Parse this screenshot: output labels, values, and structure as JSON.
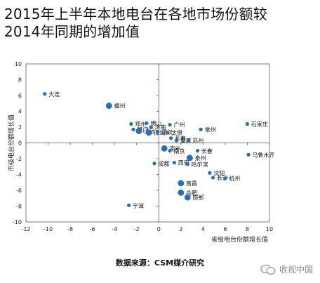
{
  "title_lines": [
    "2015年上半年本地电台在各地市场份额较",
    "2014年同期的增加值"
  ],
  "source_text": "数据来源：CSM媒介研究",
  "watermark_text": "收视中国",
  "chart_data": {
    "type": "scatter",
    "xlabel": "省级电台份额增长值",
    "ylabel": "市级电台份额增长值",
    "xlim": [
      -12,
      10
    ],
    "ylim": [
      -10,
      10
    ],
    "x_ticks": [
      -12,
      -10,
      -8,
      -6,
      -4,
      -2,
      0,
      2,
      4,
      6,
      8,
      10
    ],
    "y_ticks": [
      10,
      8,
      6,
      4,
      2,
      0,
      -2,
      -4,
      -6,
      -8,
      -10
    ],
    "grid": false,
    "legend": false,
    "colors": {
      "point": "#2e6fb4",
      "axis": "#555555"
    },
    "points": [
      {
        "label": "大连",
        "x": -10.3,
        "y": 6.2,
        "size": 2
      },
      {
        "label": "福州",
        "x": -4.5,
        "y": 4.7,
        "size": 3
      },
      {
        "label": "郑州",
        "x": -2.5,
        "y": 2.4,
        "size": 2
      },
      {
        "label": "厦门",
        "x": -2.3,
        "y": 1.7,
        "size": 2
      },
      {
        "label": "佛山",
        "x": -1.1,
        "y": 2.5,
        "size": 2
      },
      {
        "label": "济南",
        "x": -0.7,
        "y": 2.0,
        "size": 2
      },
      {
        "label": "广州",
        "x": 1.0,
        "y": 2.3,
        "size": 2
      },
      {
        "label": "清远",
        "x": -1.8,
        "y": 1.5,
        "size": 3
      },
      {
        "label": "深圳",
        "x": -0.9,
        "y": 1.3,
        "size": 3
      },
      {
        "label": "武汉",
        "x": -0.1,
        "y": 1.4,
        "size": 2
      },
      {
        "label": "太原",
        "x": 0.8,
        "y": 1.3,
        "size": 2
      },
      {
        "label": "长春",
        "x": 1.1,
        "y": 0.6,
        "size": 2
      },
      {
        "label": "重庆",
        "x": 1.6,
        "y": 0.3,
        "size": 2
      },
      {
        "label": "苏州",
        "x": 2.7,
        "y": 0.3,
        "size": 2
      },
      {
        "label": "常州",
        "x": 3.8,
        "y": 1.7,
        "size": 2
      },
      {
        "label": "石家庄",
        "x": 8.0,
        "y": 2.4,
        "size": 2
      },
      {
        "label": "长春",
        "x": 3.5,
        "y": -1.0,
        "size": 2
      },
      {
        "label": "南宁",
        "x": 0.5,
        "y": -0.7,
        "size": 3
      },
      {
        "label": "南京",
        "x": 1.0,
        "y": -1.0,
        "size": 2
      },
      {
        "label": "泉州",
        "x": 2.8,
        "y": -1.9,
        "size": 3
      },
      {
        "label": "西安",
        "x": 1.4,
        "y": -2.5,
        "size": 2
      },
      {
        "label": "哈尔滨",
        "x": 2.6,
        "y": -2.7,
        "size": 2
      },
      {
        "label": "乌鲁木齐",
        "x": 8.1,
        "y": -1.5,
        "size": 2
      },
      {
        "label": "成都",
        "x": -0.4,
        "y": -2.6,
        "size": 2
      },
      {
        "label": "沈阳",
        "x": 4.6,
        "y": -3.8,
        "size": 2
      },
      {
        "label": "长沙",
        "x": 4.9,
        "y": -4.4,
        "size": 2
      },
      {
        "label": "杭州",
        "x": 6.0,
        "y": -4.5,
        "size": 2
      },
      {
        "label": "南昌",
        "x": 2.0,
        "y": -5.1,
        "size": 3
      },
      {
        "label": "合肥",
        "x": 2.0,
        "y": -6.3,
        "size": 3
      },
      {
        "label": "邯郸",
        "x": 2.6,
        "y": -6.9,
        "size": 3
      },
      {
        "label": "宁波",
        "x": -2.7,
        "y": -7.9,
        "size": 2
      }
    ]
  }
}
